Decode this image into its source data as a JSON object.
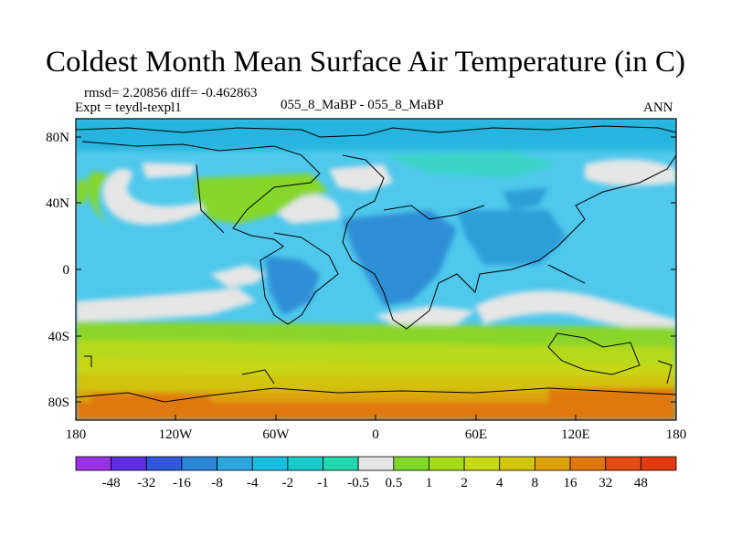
{
  "title": "Coldest Month Mean Surface Air Temperature (in C)",
  "stats_label": "rmsd= 2.20856 diff= -0.462863",
  "expt_label": "Expt = teydl-texpl1",
  "center_label": "055_8_MaBP - 055_8_MaBP",
  "right_label": "ANN",
  "lat_labels": [
    "80N",
    "40N",
    "0",
    "40S",
    "80S"
  ],
  "lon_labels": [
    "180",
    "120W",
    "60W",
    "0",
    "60E",
    "120E",
    "180"
  ],
  "colorbar": {
    "labels": [
      "-48",
      "-32",
      "-16",
      "-8",
      "-4",
      "-2",
      "-1",
      "-0.5",
      "0.5",
      "1",
      "2",
      "4",
      "8",
      "16",
      "32",
      "48"
    ],
    "colors": [
      "#9a33e6",
      "#5f2ee0",
      "#2f58dc",
      "#2c86d8",
      "#2aa6dc",
      "#19bde0",
      "#1ac9cc",
      "#23d6ae",
      "#e6e6e6",
      "#7fd92a",
      "#a6db1a",
      "#c7d916",
      "#d4c60e",
      "#dba20b",
      "#e0770c",
      "#e24b12",
      "#e23a10"
    ]
  }
}
